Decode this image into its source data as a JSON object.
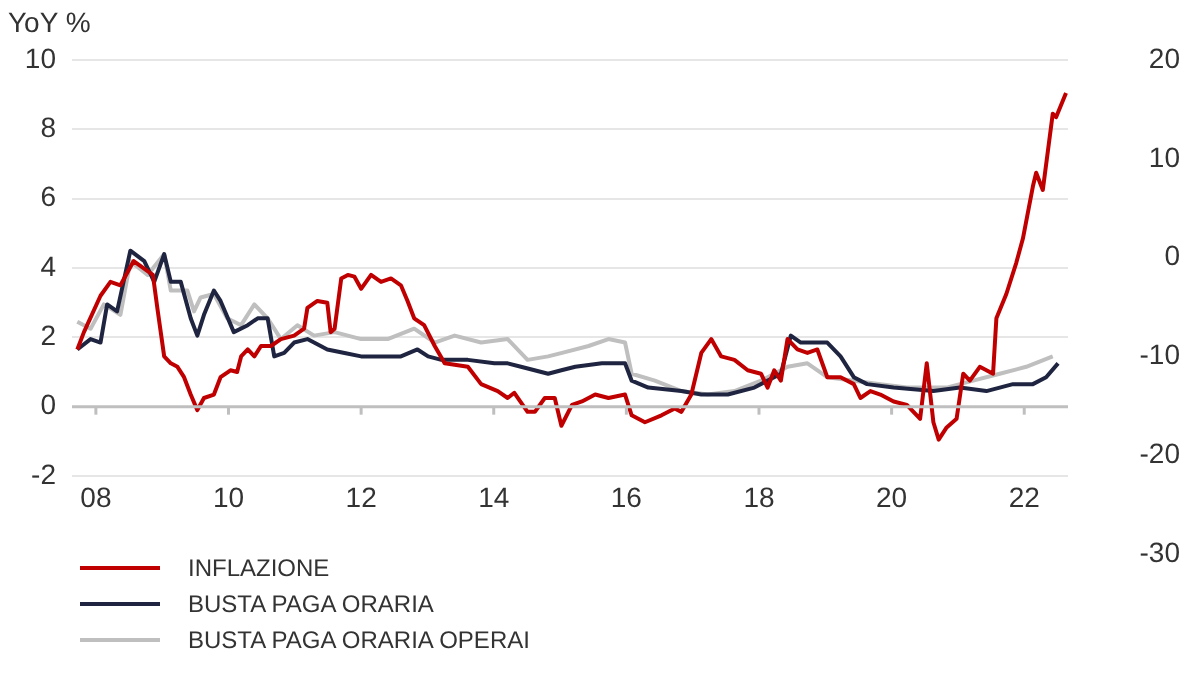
{
  "chart_data": {
    "type": "line",
    "ylabel": "YoY %",
    "xlim": [
      2007.64,
      2022.66
    ],
    "xticks": [
      {
        "value": 2008,
        "label": "08"
      },
      {
        "value": 2010,
        "label": "10"
      },
      {
        "value": 2012,
        "label": "12"
      },
      {
        "value": 2014,
        "label": "14"
      },
      {
        "value": 2016,
        "label": "16"
      },
      {
        "value": 2018,
        "label": "18"
      },
      {
        "value": 2020,
        "label": "20"
      },
      {
        "value": 2022,
        "label": "22"
      }
    ],
    "ylim": [
      -2,
      10
    ],
    "yticks": [
      -2,
      0,
      2,
      4,
      6,
      8,
      10
    ],
    "y2lim": [
      -30,
      20
    ],
    "y2ticks": [
      -30,
      -20,
      -10,
      0,
      10,
      20
    ],
    "grid": "y",
    "legend": "bottom left",
    "marker": "none",
    "line_style": "solid",
    "series": [
      {
        "name": "INFLAZIONE",
        "color": "#c00000",
        "x": [
          2007.72,
          2007.82,
          2008.07,
          2008.22,
          2008.37,
          2008.57,
          2008.86,
          2008.93,
          2009.03,
          2009.13,
          2009.23,
          2009.33,
          2009.43,
          2009.53,
          2009.63,
          2009.78,
          2009.88,
          2010.03,
          2010.13,
          2010.19,
          2010.29,
          2010.39,
          2010.49,
          2010.64,
          2010.79,
          2010.99,
          2011.14,
          2011.19,
          2011.34,
          2011.49,
          2011.54,
          2011.6,
          2011.7,
          2011.8,
          2011.9,
          2012.0,
          2012.15,
          2012.3,
          2012.45,
          2012.6,
          2012.7,
          2012.8,
          2012.95,
          2013.11,
          2013.26,
          2013.61,
          2013.81,
          2014.06,
          2014.21,
          2014.31,
          2014.51,
          2014.62,
          2014.77,
          2014.92,
          2015.02,
          2015.18,
          2015.33,
          2015.53,
          2015.73,
          2015.98,
          2016.08,
          2016.28,
          2016.53,
          2016.73,
          2016.83,
          2016.98,
          2017.13,
          2017.28,
          2017.43,
          2017.63,
          2017.83,
          2018.03,
          2018.13,
          2018.23,
          2018.33,
          2018.43,
          2018.58,
          2018.73,
          2018.88,
          2019.03,
          2019.23,
          2019.43,
          2019.53,
          2019.68,
          2019.83,
          2020.03,
          2020.23,
          2020.43,
          2020.53,
          2020.63,
          2020.71,
          2020.83,
          2020.98,
          2021.08,
          2021.18,
          2021.33,
          2021.53,
          2021.58,
          2021.73,
          2021.88,
          2021.98,
          2022.13,
          2022.18,
          2022.28,
          2022.43,
          2022.48,
          2022.63
        ],
        "values": [
          1.65,
          2.15,
          3.2,
          3.6,
          3.5,
          4.2,
          3.8,
          2.8,
          1.45,
          1.25,
          1.15,
          0.85,
          0.35,
          -0.1,
          0.25,
          0.35,
          0.85,
          1.05,
          1.0,
          1.45,
          1.65,
          1.45,
          1.75,
          1.75,
          1.95,
          2.05,
          2.25,
          2.85,
          3.05,
          3.0,
          2.15,
          2.25,
          3.7,
          3.8,
          3.75,
          3.4,
          3.8,
          3.6,
          3.7,
          3.5,
          3.05,
          2.55,
          2.35,
          1.75,
          1.25,
          1.15,
          0.65,
          0.45,
          0.25,
          0.4,
          -0.15,
          -0.15,
          0.25,
          0.25,
          -0.55,
          0.05,
          0.15,
          0.35,
          0.25,
          0.35,
          -0.25,
          -0.45,
          -0.25,
          -0.05,
          -0.15,
          0.35,
          1.55,
          1.95,
          1.45,
          1.35,
          1.05,
          0.95,
          0.55,
          1.05,
          0.75,
          1.95,
          1.65,
          1.55,
          1.65,
          0.85,
          0.85,
          0.65,
          0.25,
          0.45,
          0.35,
          0.15,
          0.05,
          -0.35,
          1.25,
          -0.45,
          -0.95,
          -0.6,
          -0.35,
          0.95,
          0.75,
          1.15,
          0.95,
          2.55,
          3.25,
          4.15,
          4.85,
          6.35,
          6.75,
          6.25,
          8.45,
          8.35,
          9.05
        ]
      },
      {
        "name": "BUSTA PAGA ORARIA",
        "color": "#1f2540",
        "x": [
          2007.72,
          2007.92,
          2008.07,
          2008.17,
          2008.32,
          2008.52,
          2008.73,
          2008.88,
          2009.03,
          2009.13,
          2009.28,
          2009.43,
          2009.53,
          2009.63,
          2009.78,
          2009.88,
          2010.08,
          2010.29,
          2010.44,
          2010.59,
          2010.69,
          2010.84,
          2010.99,
          2011.19,
          2011.49,
          2011.75,
          2012.0,
          2012.2,
          2012.6,
          2012.85,
          2013.01,
          2013.21,
          2013.61,
          2014.01,
          2014.21,
          2014.41,
          2014.82,
          2015.02,
          2015.23,
          2015.63,
          2015.98,
          2016.08,
          2016.33,
          2016.83,
          2017.13,
          2017.53,
          2017.93,
          2018.33,
          2018.48,
          2018.63,
          2019.03,
          2019.23,
          2019.43,
          2019.63,
          2020.03,
          2020.63,
          2021.03,
          2021.43,
          2021.83,
          2022.13,
          2022.33,
          2022.51
        ],
        "values": [
          1.65,
          1.95,
          1.85,
          2.95,
          2.75,
          4.5,
          4.2,
          3.6,
          4.4,
          3.6,
          3.6,
          2.55,
          2.05,
          2.65,
          3.35,
          3.05,
          2.15,
          2.35,
          2.55,
          2.55,
          1.45,
          1.55,
          1.85,
          1.95,
          1.65,
          1.55,
          1.45,
          1.45,
          1.45,
          1.65,
          1.45,
          1.35,
          1.35,
          1.25,
          1.25,
          1.15,
          0.95,
          1.05,
          1.15,
          1.25,
          1.25,
          0.75,
          0.55,
          0.45,
          0.35,
          0.35,
          0.55,
          0.95,
          2.05,
          1.85,
          1.85,
          1.45,
          0.85,
          0.65,
          0.55,
          0.45,
          0.55,
          0.45,
          0.65,
          0.65,
          0.85,
          1.25
        ]
      },
      {
        "name": "BUSTA PAGA ORARIA OPERAI",
        "color": "#bfbfbf",
        "x": [
          2007.72,
          2007.92,
          2008.12,
          2008.37,
          2008.52,
          2008.78,
          2009.03,
          2009.13,
          2009.38,
          2009.48,
          2009.58,
          2009.78,
          2009.98,
          2010.19,
          2010.39,
          2010.59,
          2010.79,
          2011.04,
          2011.29,
          2011.6,
          2012.0,
          2012.4,
          2012.8,
          2013.11,
          2013.41,
          2013.81,
          2014.21,
          2014.51,
          2014.82,
          2015.03,
          2015.43,
          2015.73,
          2015.98,
          2016.08,
          2016.43,
          2016.83,
          2017.23,
          2017.63,
          2018.03,
          2018.43,
          2018.73,
          2019.03,
          2019.43,
          2019.83,
          2020.23,
          2020.83,
          2021.23,
          2021.63,
          2022.03,
          2022.43
        ],
        "values": [
          2.45,
          2.25,
          2.95,
          2.65,
          4.2,
          3.8,
          4.4,
          3.35,
          3.35,
          2.75,
          3.15,
          3.25,
          2.55,
          2.35,
          2.95,
          2.55,
          1.95,
          2.35,
          2.05,
          2.15,
          1.95,
          1.95,
          2.25,
          1.85,
          2.05,
          1.85,
          1.95,
          1.35,
          1.45,
          1.55,
          1.75,
          1.95,
          1.85,
          0.95,
          0.75,
          0.45,
          0.35,
          0.45,
          0.75,
          1.15,
          1.25,
          0.85,
          0.75,
          0.65,
          0.55,
          0.55,
          0.75,
          0.95,
          1.15,
          1.45
        ]
      }
    ]
  }
}
